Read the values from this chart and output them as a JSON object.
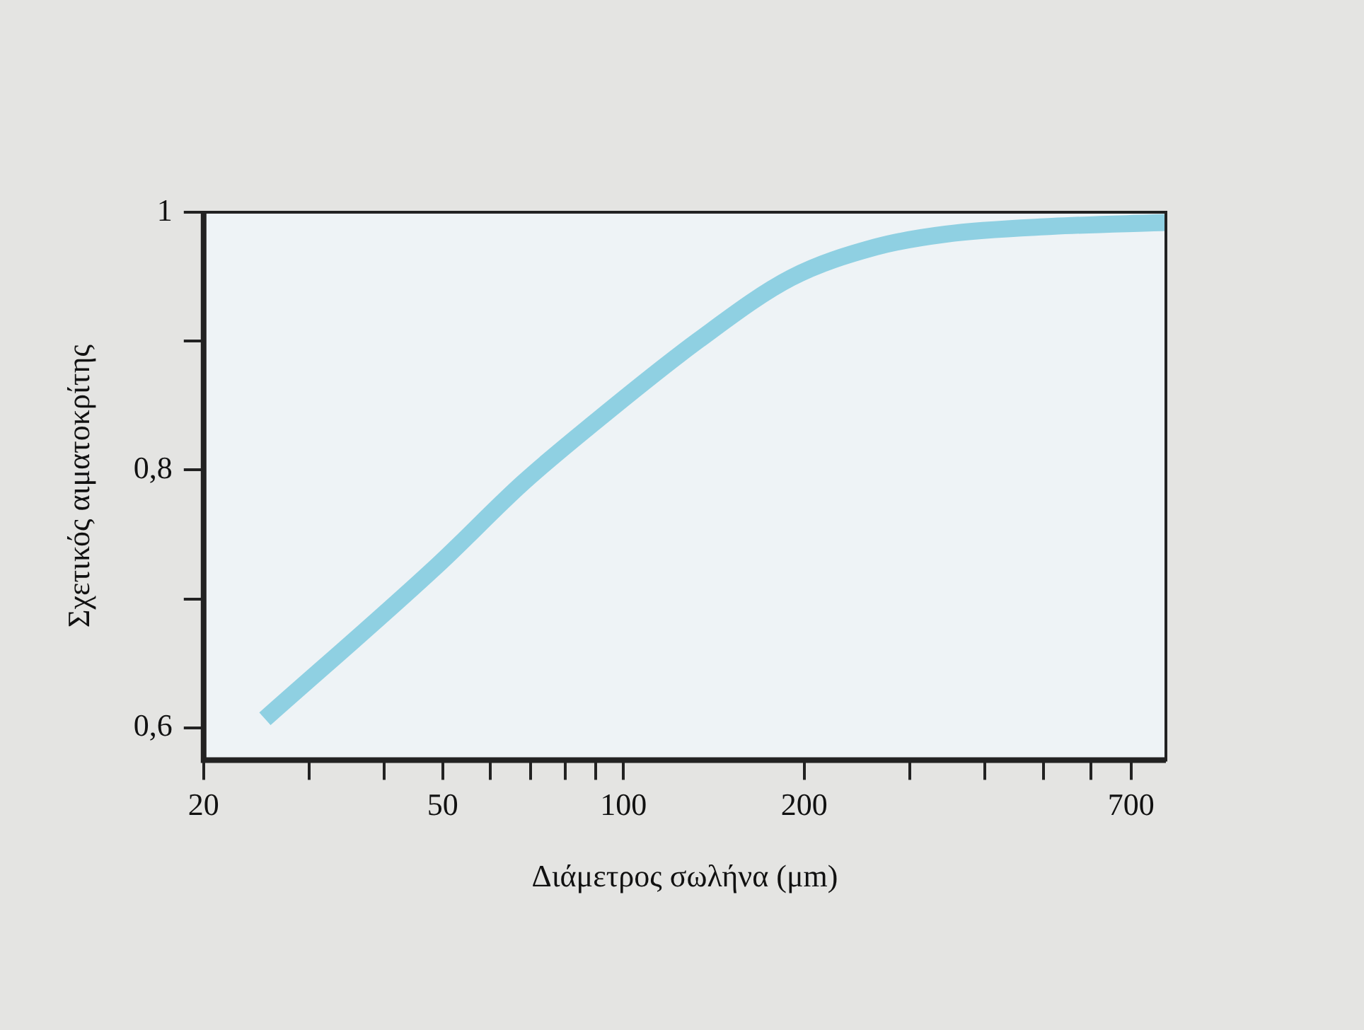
{
  "chart_data": {
    "type": "line",
    "xlabel": "Διάμετρος σωλήνα (μm)",
    "ylabel": "Σχετικός αιματοκρίτης",
    "log": "x",
    "x": [
      25.3,
      49,
      68,
      89,
      133.6,
      190,
      263,
      344,
      517,
      796
    ],
    "series": [
      {
        "color": "#8fd0e2",
        "values": [
          0.607,
          0.726,
          0.79,
          0.836,
          0.901,
          0.949,
          0.973,
          0.983,
          0.989,
          0.992
        ]
      }
    ],
    "xlim": [
      20,
      800
    ],
    "xticks": [
      20,
      {
        "value": 30,
        "label": null
      },
      {
        "value": 40,
        "label": null
      },
      50,
      {
        "value": 60,
        "label": null
      },
      {
        "value": 70,
        "label": null
      },
      {
        "value": 80,
        "label": null
      },
      {
        "value": 90,
        "label": null
      },
      100,
      200,
      {
        "value": 300,
        "label": null
      },
      {
        "value": 400,
        "label": null
      },
      {
        "value": 500,
        "label": null
      },
      {
        "value": 600,
        "label": null
      },
      700
    ],
    "ylim": [
      0.575,
      1
    ],
    "yticks": [
      {
        "value": 0.6,
        "label": "0,6"
      },
      {
        "value": 0.7,
        "label": null
      },
      {
        "value": 0.8,
        "label": "0,8"
      },
      {
        "value": 0.9,
        "label": null
      },
      1
    ],
    "grid": false,
    "legend": false,
    "marker": "none",
    "line_style": "solid"
  }
}
